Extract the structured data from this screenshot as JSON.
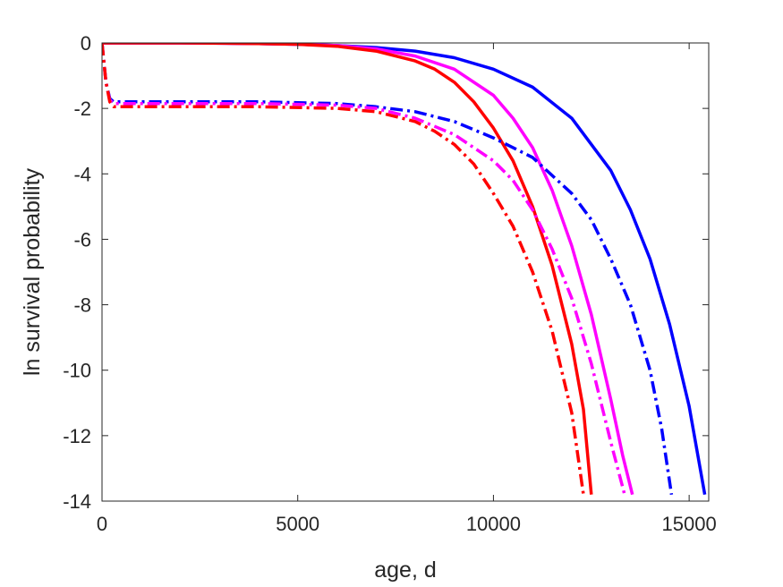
{
  "chart_data": {
    "type": "line",
    "title": "",
    "xlabel": "age, d",
    "ylabel": "ln survival probability",
    "xlim": [
      0,
      15500
    ],
    "ylim": [
      -14,
      0
    ],
    "xticks": [
      0,
      5000,
      10000,
      15000
    ],
    "yticks": [
      0,
      -2,
      -4,
      -6,
      -8,
      -10,
      -12,
      -14
    ],
    "xtick_labels": [
      "0",
      "5000",
      "10000",
      "15000"
    ],
    "ytick_labels": [
      "0",
      "-2",
      "-4",
      "-6",
      "-8",
      "-10",
      "-12",
      "-14"
    ],
    "grid": false,
    "legend": "none",
    "series": [
      {
        "color": "#0000ff",
        "style": "solid",
        "x": [
          0,
          2000,
          4000,
          5000,
          6000,
          7000,
          8000,
          9000,
          10000,
          11000,
          12000,
          13000,
          13500,
          14000,
          14500,
          15000,
          15400
        ],
        "y": [
          0,
          0,
          -0.02,
          -0.04,
          -0.08,
          -0.14,
          -0.25,
          -0.45,
          -0.8,
          -1.35,
          -2.3,
          -3.9,
          -5.1,
          -6.6,
          -8.6,
          -11.1,
          -13.8
        ]
      },
      {
        "color": "#ff00ff",
        "style": "solid",
        "x": [
          0,
          2000,
          4000,
          5000,
          6000,
          7000,
          8000,
          9000,
          10000,
          10500,
          11000,
          11500,
          12000,
          12500,
          13000,
          13300,
          13550
        ],
        "y": [
          0,
          0,
          -0.02,
          -0.04,
          -0.08,
          -0.18,
          -0.4,
          -0.8,
          -1.6,
          -2.3,
          -3.2,
          -4.5,
          -6.2,
          -8.3,
          -10.9,
          -12.6,
          -13.8
        ]
      },
      {
        "color": "#ff0000",
        "style": "solid",
        "x": [
          0,
          2000,
          4000,
          5000,
          6000,
          7000,
          8000,
          8500,
          9000,
          9500,
          10000,
          10500,
          11000,
          11500,
          12000,
          12300,
          12500
        ],
        "y": [
          0,
          0,
          -0.02,
          -0.04,
          -0.1,
          -0.25,
          -0.55,
          -0.8,
          -1.2,
          -1.8,
          -2.6,
          -3.6,
          -5.0,
          -6.8,
          -9.2,
          -11.2,
          -13.8
        ]
      },
      {
        "color": "#0000ff",
        "style": "dashdot",
        "x": [
          0,
          100,
          200,
          300,
          2000,
          4000,
          6000,
          7000,
          8000,
          9000,
          10000,
          11000,
          12000,
          12500,
          13000,
          13500,
          14000,
          14300,
          14550
        ],
        "y": [
          0,
          -1.2,
          -1.7,
          -1.8,
          -1.8,
          -1.8,
          -1.85,
          -1.95,
          -2.1,
          -2.4,
          -2.9,
          -3.5,
          -4.6,
          -5.4,
          -6.6,
          -8.0,
          -10.0,
          -11.8,
          -13.8
        ]
      },
      {
        "color": "#ff00ff",
        "style": "dashdot",
        "x": [
          0,
          100,
          200,
          300,
          2000,
          4000,
          6000,
          7000,
          8000,
          9000,
          10000,
          10500,
          11000,
          11500,
          12000,
          12500,
          13000,
          13350
        ],
        "y": [
          0,
          -1.2,
          -1.75,
          -1.85,
          -1.85,
          -1.85,
          -1.9,
          -2.0,
          -2.3,
          -2.8,
          -3.6,
          -4.2,
          -5.1,
          -6.3,
          -7.8,
          -9.8,
          -12.2,
          -13.8
        ]
      },
      {
        "color": "#ff0000",
        "style": "dashdot",
        "x": [
          0,
          100,
          200,
          300,
          2000,
          4000,
          6000,
          7000,
          8000,
          8500,
          9000,
          9500,
          10000,
          10500,
          11000,
          11500,
          12000,
          12300
        ],
        "y": [
          0,
          -1.2,
          -1.8,
          -1.95,
          -1.95,
          -1.95,
          -2.0,
          -2.1,
          -2.4,
          -2.7,
          -3.1,
          -3.7,
          -4.6,
          -5.6,
          -7.0,
          -8.8,
          -11.3,
          -13.8
        ]
      }
    ]
  }
}
